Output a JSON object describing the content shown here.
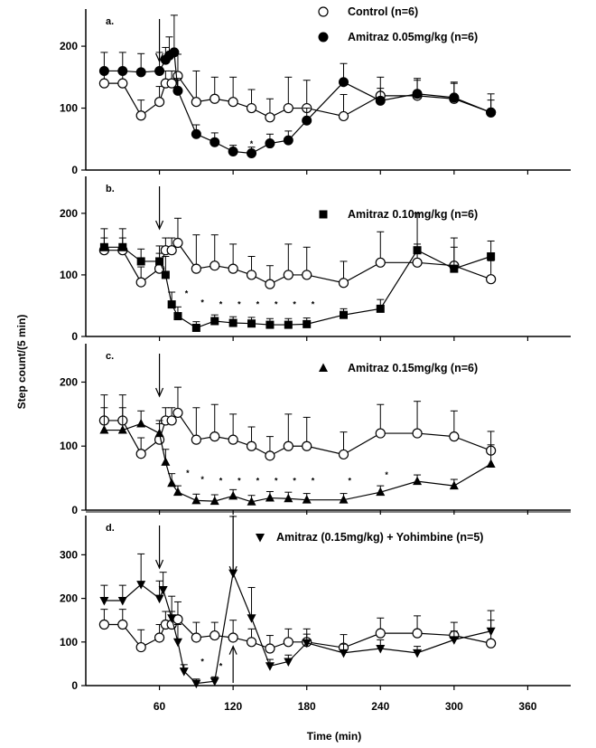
{
  "chart_data": [
    {
      "panel": "a.",
      "type": "line",
      "ylim": [
        0,
        260
      ],
      "yticks": [
        0,
        100,
        200
      ],
      "series": [
        {
          "name": "Control (n=6)",
          "marker": "circle-open",
          "points": [
            [
              15,
              140
            ],
            [
              30,
              140
            ],
            [
              45,
              88
            ],
            [
              60,
              110
            ],
            [
              65,
              140
            ],
            [
              70,
              140
            ],
            [
              75,
              152
            ],
            [
              90,
              110
            ],
            [
              105,
              115
            ],
            [
              120,
              110
            ],
            [
              135,
              100
            ],
            [
              150,
              85
            ],
            [
              165,
              100
            ],
            [
              180,
              100
            ],
            [
              210,
              87
            ],
            [
              240,
              120
            ],
            [
              270,
              120
            ],
            [
              300,
              115
            ],
            [
              330,
              93
            ]
          ],
          "err": [
            20,
            20,
            25,
            25,
            20,
            20,
            35,
            50,
            35,
            40,
            30,
            30,
            50,
            45,
            35,
            30,
            25,
            25,
            30
          ]
        },
        {
          "name": "Amitraz 0.05mg/kg (n=6)",
          "marker": "circle-filled",
          "points": [
            [
              15,
              160
            ],
            [
              30,
              160
            ],
            [
              45,
              158
            ],
            [
              60,
              160
            ],
            [
              65,
              178
            ],
            [
              68,
              185
            ],
            [
              72,
              190
            ],
            [
              75,
              128
            ],
            [
              90,
              58
            ],
            [
              105,
              45
            ],
            [
              120,
              30
            ],
            [
              135,
              27
            ],
            [
              150,
              43
            ],
            [
              165,
              48
            ],
            [
              180,
              80
            ],
            [
              210,
              142
            ],
            [
              240,
              112
            ],
            [
              270,
              123
            ],
            [
              300,
              117
            ],
            [
              330,
              93
            ]
          ],
          "err": [
            30,
            30,
            30,
            30,
            20,
            30,
            60,
            20,
            15,
            15,
            10,
            10,
            15,
            15,
            20,
            30,
            20,
            25,
            25,
            20
          ]
        }
      ],
      "annotations": {
        "stars": [
          [
            135,
            42
          ]
        ],
        "arrows_down": [
          60
        ]
      }
    },
    {
      "panel": "b.",
      "type": "line",
      "ylim": [
        0,
        260
      ],
      "yticks": [
        0,
        100,
        200
      ],
      "series": [
        {
          "name": "Control (n=6)",
          "marker": "circle-open",
          "points": [
            [
              15,
              140
            ],
            [
              30,
              140
            ],
            [
              45,
              88
            ],
            [
              60,
              110
            ],
            [
              65,
              140
            ],
            [
              70,
              140
            ],
            [
              75,
              152
            ],
            [
              90,
              110
            ],
            [
              105,
              115
            ],
            [
              120,
              110
            ],
            [
              135,
              100
            ],
            [
              150,
              85
            ],
            [
              165,
              100
            ],
            [
              180,
              100
            ],
            [
              210,
              87
            ],
            [
              240,
              120
            ],
            [
              270,
              120
            ],
            [
              300,
              115
            ],
            [
              330,
              93
            ]
          ],
          "err": [
            20,
            20,
            25,
            25,
            20,
            20,
            40,
            55,
            50,
            40,
            30,
            30,
            50,
            45,
            35,
            50,
            30,
            30,
            30
          ]
        },
        {
          "name": "Amitraz 0.10mg/kg (n=6)",
          "marker": "square-filled",
          "points": [
            [
              15,
              145
            ],
            [
              30,
              145
            ],
            [
              45,
              122
            ],
            [
              60,
              122
            ],
            [
              65,
              100
            ],
            [
              70,
              52
            ],
            [
              75,
              33
            ],
            [
              90,
              14
            ],
            [
              105,
              25
            ],
            [
              120,
              22
            ],
            [
              135,
              21
            ],
            [
              150,
              19
            ],
            [
              165,
              19
            ],
            [
              180,
              20
            ],
            [
              210,
              35
            ],
            [
              240,
              45
            ],
            [
              270,
              140
            ],
            [
              300,
              110
            ],
            [
              330,
              130
            ]
          ],
          "err": [
            30,
            30,
            20,
            25,
            30,
            20,
            15,
            10,
            10,
            10,
            10,
            10,
            10,
            10,
            10,
            15,
            60,
            50,
            25
          ]
        }
      ],
      "annotations": {
        "stars": [
          [
            82,
            70
          ],
          [
            95,
            55
          ],
          [
            110,
            52
          ],
          [
            125,
            52
          ],
          [
            140,
            52
          ],
          [
            155,
            52
          ],
          [
            170,
            52
          ],
          [
            185,
            52
          ]
        ],
        "arrows_down": [
          60
        ]
      }
    },
    {
      "panel": "c.",
      "type": "line",
      "ylim": [
        0,
        260
      ],
      "yticks": [
        0,
        100,
        200
      ],
      "series": [
        {
          "name": "Control (n=6)",
          "marker": "circle-open",
          "points": [
            [
              15,
              140
            ],
            [
              30,
              140
            ],
            [
              45,
              88
            ],
            [
              60,
              110
            ],
            [
              65,
              140
            ],
            [
              70,
              140
            ],
            [
              75,
              152
            ],
            [
              90,
              110
            ],
            [
              105,
              115
            ],
            [
              120,
              110
            ],
            [
              135,
              100
            ],
            [
              150,
              85
            ],
            [
              165,
              100
            ],
            [
              180,
              100
            ],
            [
              210,
              87
            ],
            [
              240,
              120
            ],
            [
              270,
              120
            ],
            [
              300,
              115
            ],
            [
              330,
              93
            ]
          ],
          "err": [
            40,
            40,
            25,
            25,
            20,
            20,
            40,
            50,
            50,
            40,
            30,
            30,
            50,
            45,
            35,
            45,
            50,
            40,
            30
          ]
        },
        {
          "name": "Amitraz 0.15mg/kg (n=6)",
          "marker": "triangle-up-filled",
          "points": [
            [
              15,
              125
            ],
            [
              30,
              125
            ],
            [
              45,
              135
            ],
            [
              60,
              120
            ],
            [
              65,
              75
            ],
            [
              70,
              42
            ],
            [
              75,
              28
            ],
            [
              90,
              15
            ],
            [
              105,
              14
            ],
            [
              120,
              22
            ],
            [
              135,
              13
            ],
            [
              150,
              19
            ],
            [
              165,
              18
            ],
            [
              180,
              16
            ],
            [
              210,
              16
            ],
            [
              240,
              28
            ],
            [
              270,
              45
            ],
            [
              300,
              38
            ],
            [
              330,
              72
            ]
          ],
          "err": [
            35,
            35,
            20,
            20,
            20,
            15,
            10,
            10,
            10,
            10,
            10,
            10,
            10,
            10,
            10,
            10,
            10,
            10,
            30
          ]
        }
      ],
      "annotations": {
        "stars": [
          [
            83,
            58
          ],
          [
            95,
            48
          ],
          [
            110,
            46
          ],
          [
            125,
            46
          ],
          [
            140,
            46
          ],
          [
            155,
            46
          ],
          [
            170,
            46
          ],
          [
            185,
            46
          ],
          [
            215,
            46
          ],
          [
            245,
            55
          ]
        ],
        "arrows_down": [
          60
        ]
      }
    },
    {
      "panel": "d.",
      "type": "line",
      "ylim": [
        0,
        390
      ],
      "yticks": [
        0,
        100,
        200,
        300
      ],
      "series": [
        {
          "name": "Control (n=6)",
          "marker": "circle-open",
          "points": [
            [
              15,
              140
            ],
            [
              30,
              140
            ],
            [
              45,
              88
            ],
            [
              60,
              110
            ],
            [
              65,
              140
            ],
            [
              70,
              140
            ],
            [
              75,
              152
            ],
            [
              90,
              110
            ],
            [
              105,
              115
            ],
            [
              120,
              110
            ],
            [
              135,
              100
            ],
            [
              150,
              85
            ],
            [
              165,
              100
            ],
            [
              180,
              100
            ],
            [
              210,
              87
            ],
            [
              240,
              120
            ],
            [
              270,
              120
            ],
            [
              300,
              115
            ],
            [
              330,
              97
            ]
          ],
          "err": [
            35,
            35,
            40,
            30,
            30,
            30,
            40,
            35,
            30,
            40,
            30,
            30,
            30,
            30,
            30,
            35,
            40,
            30,
            75
          ]
        },
        {
          "name": "Amitraz (0.15mg/kg) + Yohimbine (n=5)",
          "marker": "triangle-down-filled",
          "points": [
            [
              15,
              195
            ],
            [
              30,
              195
            ],
            [
              45,
              232
            ],
            [
              60,
              200
            ],
            [
              63,
              220
            ],
            [
              70,
              155
            ],
            [
              75,
              100
            ],
            [
              80,
              33
            ],
            [
              90,
              5
            ],
            [
              105,
              10
            ],
            [
              120,
              258
            ],
            [
              135,
              155
            ],
            [
              150,
              45
            ],
            [
              165,
              55
            ],
            [
              180,
              98
            ],
            [
              210,
              75
            ],
            [
              240,
              85
            ],
            [
              270,
              75
            ],
            [
              300,
              105
            ],
            [
              330,
              125
            ]
          ],
          "err": [
            35,
            35,
            70,
            40,
            40,
            50,
            40,
            15,
            10,
            10,
            130,
            70,
            15,
            15,
            20,
            20,
            20,
            15,
            20,
            25
          ]
        }
      ],
      "annotations": {
        "stars": [
          [
            95,
            55
          ],
          [
            110,
            45
          ]
        ],
        "arrows_down": [
          60,
          120
        ],
        "arrows_up": [
          120
        ]
      }
    }
  ],
  "axes": {
    "x": {
      "label": "Time (min)",
      "ticks": [
        60,
        120,
        180,
        240,
        300,
        360
      ],
      "range": [
        0,
        395
      ]
    },
    "y": {
      "label": "Step count/(5 min)"
    }
  },
  "legend": {
    "control": "Control (n=6)",
    "a": "Amitraz 0.05mg/kg (n=6)",
    "b": "Amitraz 0.10mg/kg (n=6)",
    "c": "Amitraz 0.15mg/kg (n=6)",
    "d": "Amitraz (0.15mg/kg) + Yohimbine (n=5)"
  }
}
